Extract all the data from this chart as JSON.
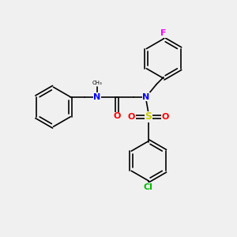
{
  "background_color": "#f0f0f0",
  "bond_color": "#000000",
  "N_color": "#0000ff",
  "O_color": "#ff0000",
  "S_color": "#cccc00",
  "F_color": "#ff00ff",
  "Cl_color": "#00bb00",
  "figsize": [
    3.0,
    3.0
  ],
  "dpi": 100,
  "xlim": [
    0,
    10
  ],
  "ylim": [
    0,
    10
  ]
}
